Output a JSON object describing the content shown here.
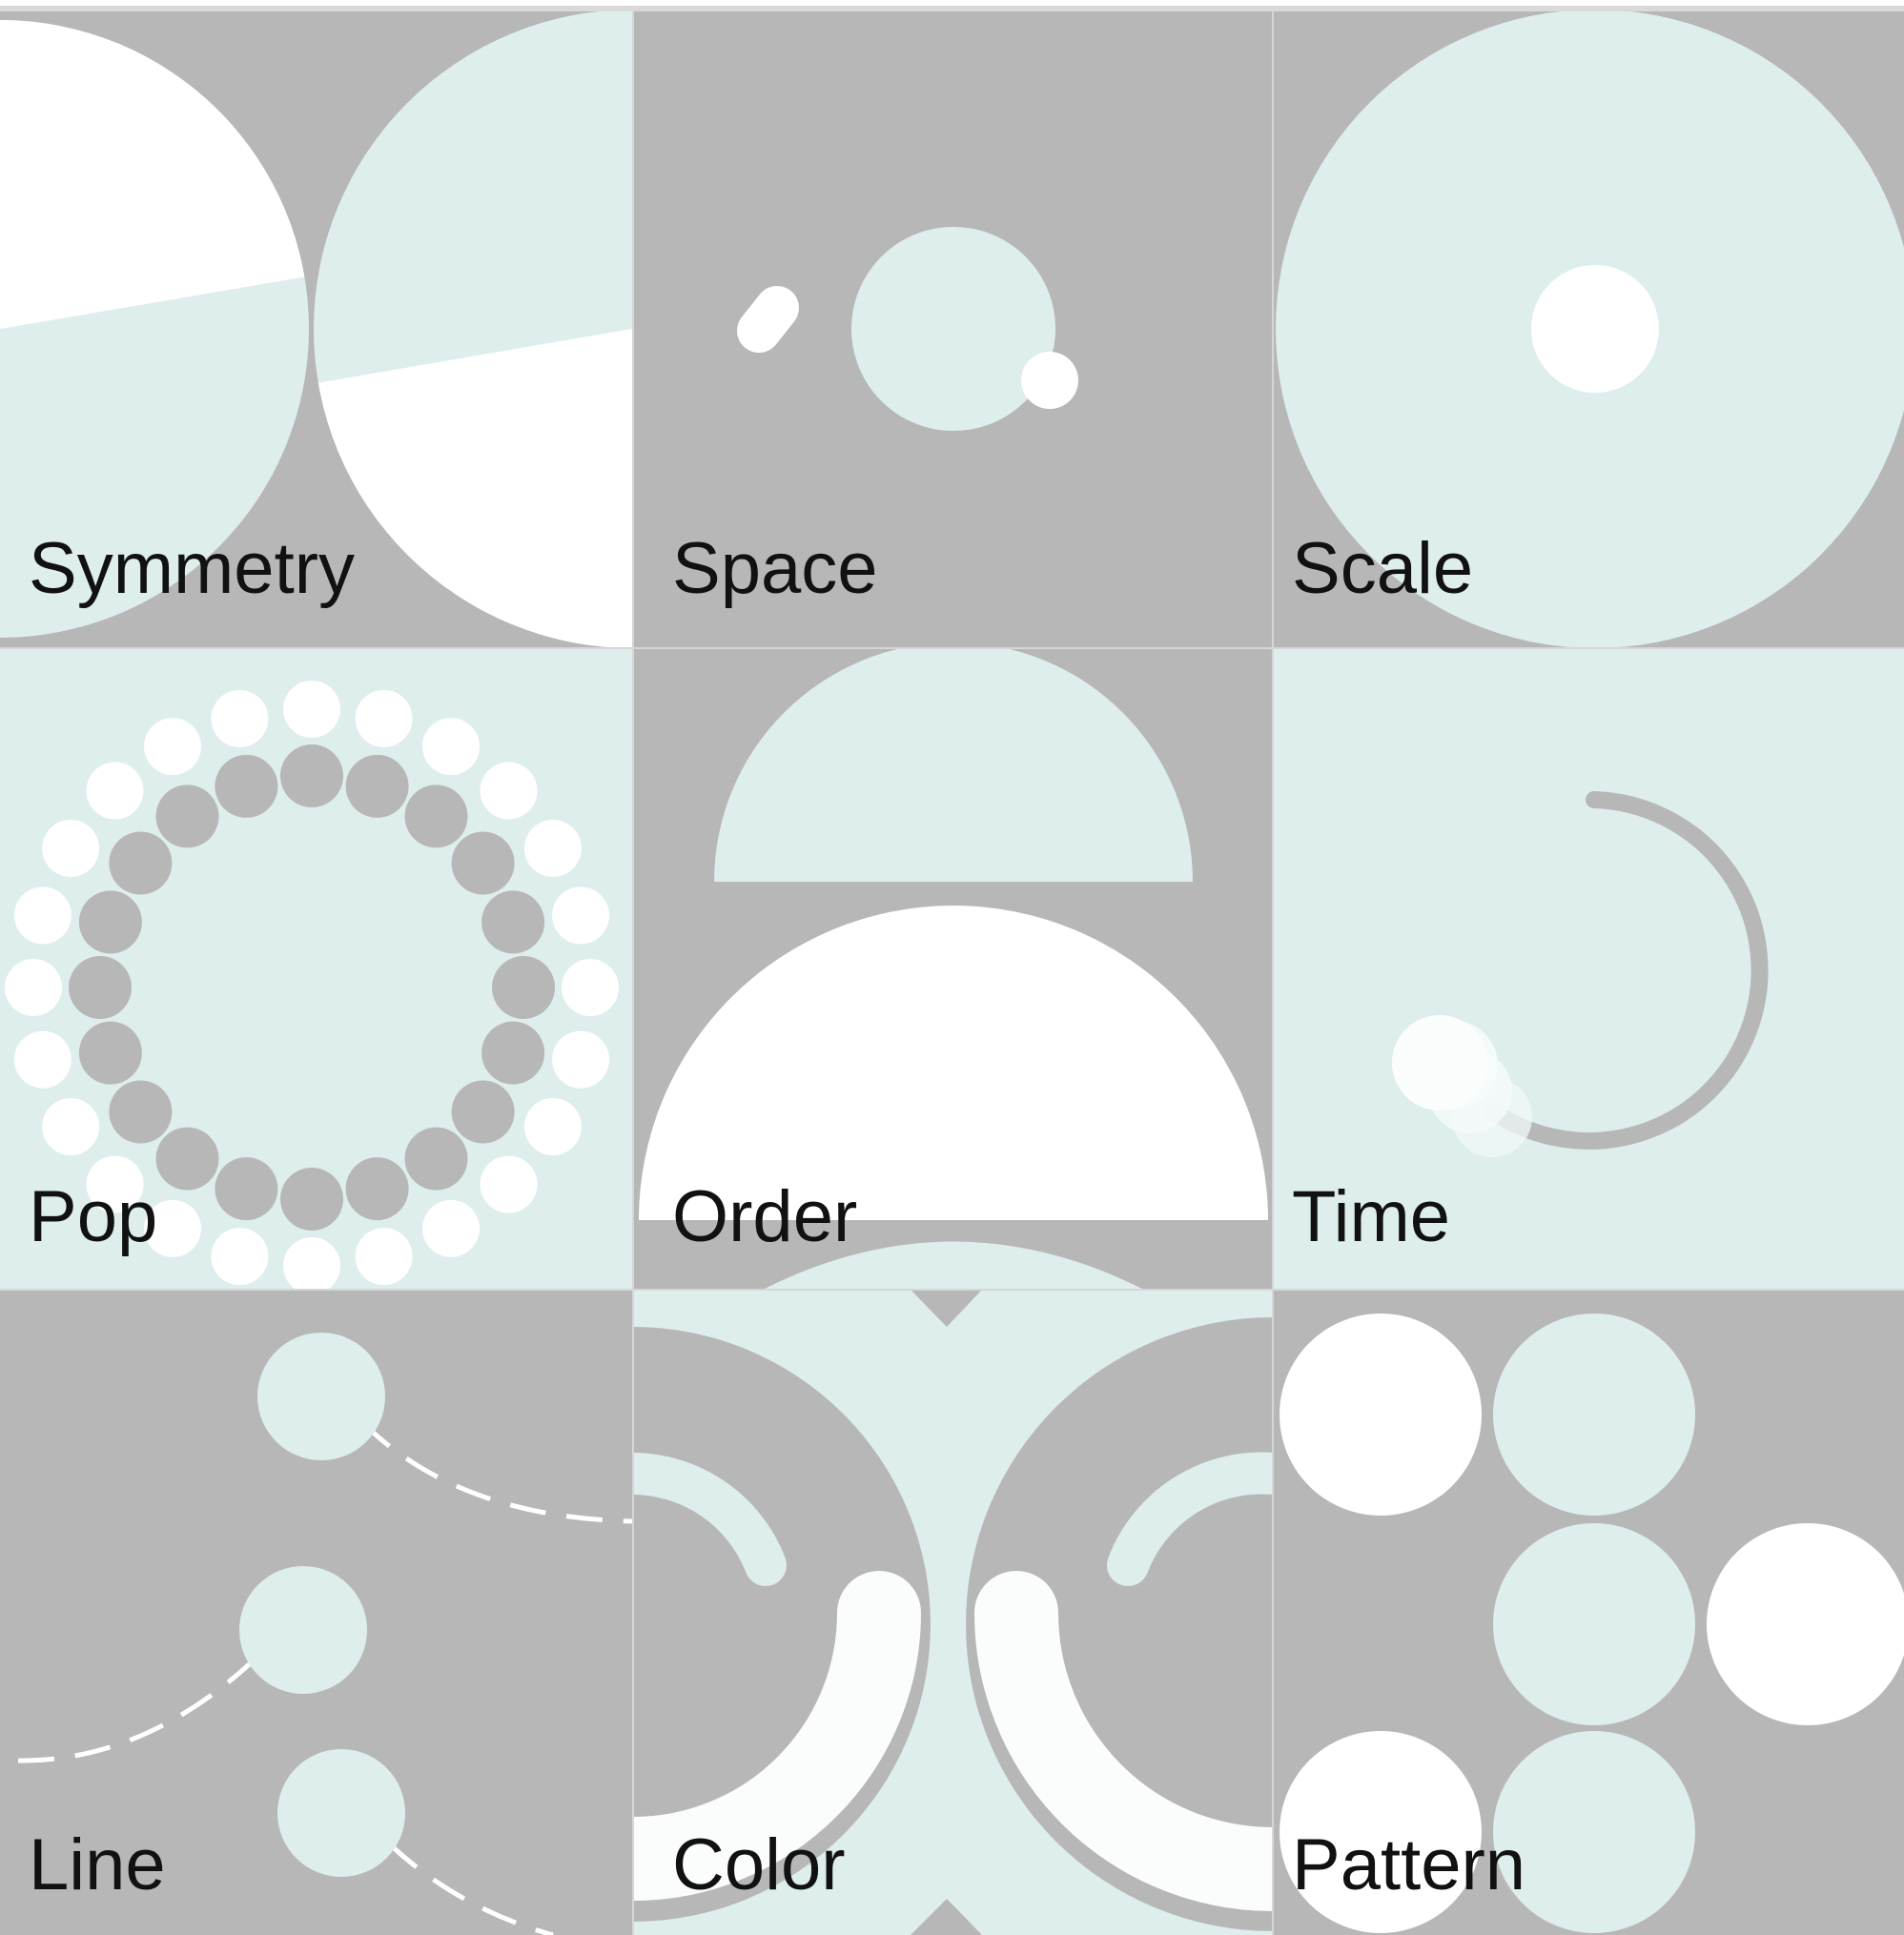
{
  "colors": {
    "gray": "#b7b7b7",
    "mint": "#deeeed",
    "white": "#ffffff",
    "offwhite": "#fbfdfd",
    "label": "#111111"
  },
  "tiles": [
    {
      "id": "symmetry",
      "label": "Symmetry"
    },
    {
      "id": "space",
      "label": "Space"
    },
    {
      "id": "scale",
      "label": "Scale"
    },
    {
      "id": "pop",
      "label": "Pop"
    },
    {
      "id": "order",
      "label": "Order"
    },
    {
      "id": "time",
      "label": "Time"
    },
    {
      "id": "line",
      "label": "Line"
    },
    {
      "id": "color",
      "label": "Color"
    },
    {
      "id": "pattern",
      "label": "Pattern"
    }
  ]
}
